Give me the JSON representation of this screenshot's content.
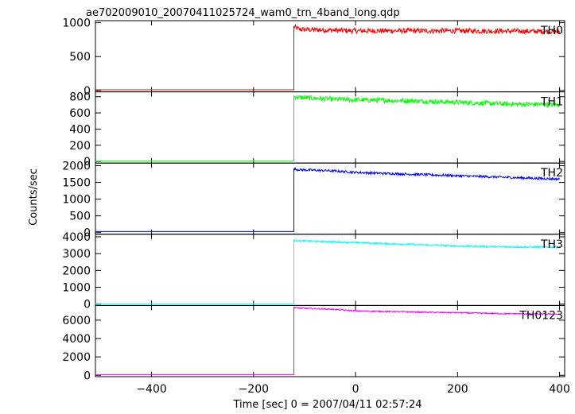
{
  "chart_data": {
    "type": "line",
    "title": "ae702009010_20070411025724_wam0_trn_4band_long.qdp",
    "xlabel": "Time [sec] 0 = 2007/04/11 02:57:24",
    "ylabel": "Counts/sec",
    "xlim": [
      -510,
      410
    ],
    "x_ticks": [
      -400,
      -200,
      0,
      200,
      400
    ],
    "grid": false,
    "onset_x": -121,
    "x_end": 400,
    "panels": [
      {
        "name": "TH0",
        "color": "#ff0000",
        "ylim": [
          -20,
          1030
        ],
        "y_ticks": [
          0,
          500,
          1000
        ],
        "baseline": 10,
        "series_x": [
          -121,
          -110,
          -50,
          0,
          100,
          200,
          300,
          400
        ],
        "series_y": [
          940,
          900,
          890,
          880,
          880,
          880,
          875,
          870
        ],
        "noise": 38
      },
      {
        "name": "TH1",
        "color": "#00ff00",
        "ylim": [
          -20,
          860
        ],
        "y_ticks": [
          0,
          200,
          400,
          600,
          800
        ],
        "baseline": 5,
        "series_x": [
          -121,
          -110,
          -50,
          0,
          100,
          200,
          300,
          400
        ],
        "series_y": [
          800,
          790,
          770,
          760,
          750,
          730,
          710,
          700
        ],
        "noise": 30
      },
      {
        "name": "TH2",
        "color": "#0000ff",
        "ylim": [
          -50,
          2080
        ],
        "y_ticks": [
          0,
          500,
          1000,
          1500,
          2000
        ],
        "baseline": 30,
        "series_x": [
          -121,
          -110,
          -50,
          0,
          100,
          200,
          300,
          400
        ],
        "series_y": [
          1900,
          1880,
          1850,
          1800,
          1750,
          1700,
          1650,
          1600
        ],
        "noise": 35
      },
      {
        "name": "TH3",
        "color": "#00ffff",
        "ylim": [
          -80,
          4150
        ],
        "y_ticks": [
          0,
          1000,
          2000,
          3000,
          4000
        ],
        "baseline": 20,
        "series_x": [
          -121,
          -110,
          -50,
          0,
          100,
          200,
          300,
          400
        ],
        "series_y": [
          3800,
          3750,
          3700,
          3650,
          3550,
          3450,
          3400,
          3380
        ],
        "noise": 55
      },
      {
        "name": "TH0123",
        "color": "#ff00ff",
        "ylim": [
          -150,
          7600
        ],
        "y_ticks": [
          0,
          2000,
          4000,
          6000
        ],
        "baseline": 60,
        "series_x": [
          -121,
          -110,
          -50,
          0,
          100,
          200,
          300,
          400
        ],
        "series_y": [
          7400,
          7300,
          7200,
          7000,
          6900,
          6800,
          6700,
          6650
        ],
        "noise": 70
      }
    ]
  }
}
